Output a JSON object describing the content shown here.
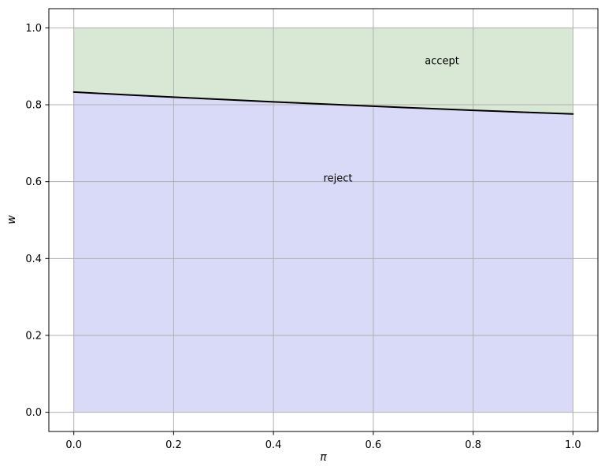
{
  "figure": {
    "background_color": "#ffffff",
    "xlabel": "π",
    "ylabel": "w"
  },
  "chart_data": {
    "type": "area",
    "title": "",
    "xlabel": "π",
    "ylabel": "w",
    "xlim": [
      -0.05,
      1.05
    ],
    "ylim": [
      -0.05,
      1.05
    ],
    "grid": true,
    "grid_color": "#b0b0b0",
    "spine_color": "#000000",
    "legend": "none",
    "x_tick_values": [
      0.0,
      0.2,
      0.4,
      0.6,
      0.8,
      1.0
    ],
    "x_tick_labels": [
      "0.0",
      "0.2",
      "0.4",
      "0.6",
      "0.8",
      "1.0"
    ],
    "y_tick_values": [
      0.0,
      0.2,
      0.4,
      0.6,
      0.8,
      1.0
    ],
    "y_tick_labels": [
      "0.0",
      "0.2",
      "0.4",
      "0.6",
      "0.8",
      "1.0"
    ],
    "boundary": {
      "name": "decision-boundary",
      "color": "#000000",
      "line_width": 2,
      "x": [
        0.0,
        0.1,
        0.2,
        0.3,
        0.4,
        0.5,
        0.6,
        0.7,
        0.8,
        0.9,
        1.0
      ],
      "w": [
        0.833,
        0.8263,
        0.8198,
        0.8136,
        0.8076,
        0.8018,
        0.7962,
        0.7908,
        0.7856,
        0.7807,
        0.776
      ]
    },
    "regions": [
      {
        "name": "accept",
        "label": "accept",
        "fill_color": "#d8e8d4",
        "extent": "between boundary line and w = 1.0, for π in [0, 1]",
        "label_position": {
          "pi": 0.74,
          "w": 0.91
        }
      },
      {
        "name": "reject",
        "label": "reject",
        "fill_color": "#d9d9f8",
        "extent": "between w = 0.0 and boundary line, for π in [0, 1]",
        "label_position": {
          "pi": 0.53,
          "w": 0.61
        }
      }
    ]
  }
}
